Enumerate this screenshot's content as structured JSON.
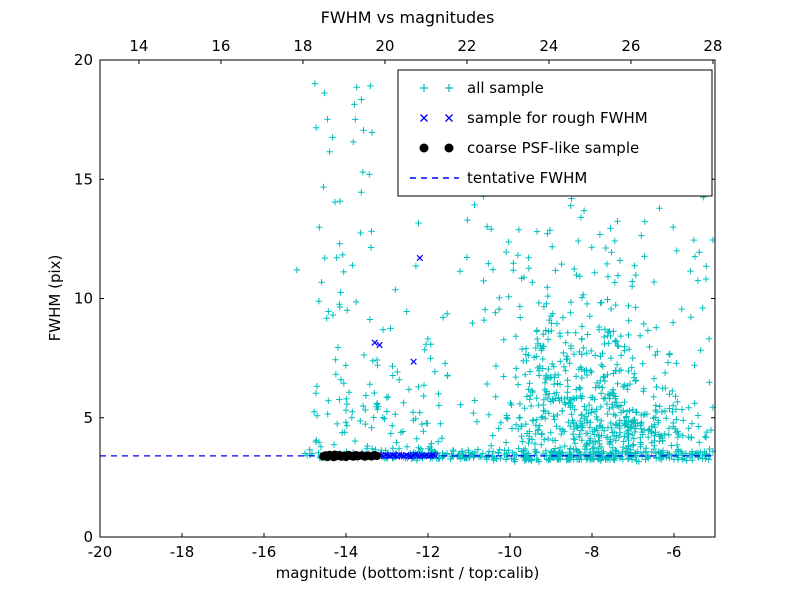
{
  "page": {
    "title": "FWHM vs magnitudes"
  },
  "chart_data": {
    "type": "scatter",
    "title": "FWHM vs magnitudes",
    "xlabel": "magnitude (bottom:isnt / top:calib)",
    "ylabel": "FWHM (pix)",
    "xlim": [
      -20,
      -5
    ],
    "ylim": [
      0,
      20
    ],
    "bottom_ticks": [
      -20,
      -18,
      -16,
      -14,
      -12,
      -10,
      -8,
      -6
    ],
    "top_ticks": [
      14,
      16,
      18,
      20,
      22,
      24,
      26,
      28
    ],
    "top_axis_range": [
      13.05,
      28.05
    ],
    "y_ticks": [
      0,
      5,
      10,
      15,
      20
    ],
    "grid": false,
    "legend_position": "upper right",
    "tentative_fwhm_y": 3.4,
    "colors": {
      "all_sample": "#00bfbf",
      "rough_fwhm": "#0000ff",
      "psf_sample": "#000000",
      "tentative_line": "#0000ff",
      "axes": "#000000",
      "background": "#ffffff"
    },
    "series": [
      {
        "name": "all sample",
        "marker": "plus",
        "color": "#00bfbf",
        "seed": 42,
        "clusters": [
          {
            "n": 420,
            "x": [
              "gauss",
              -8.3,
              1.2
            ],
            "y": [
              "gauss",
              5.3,
              1.5
            ],
            "clip": [
              -12.4,
              -5.05,
              3.25,
              19.5
            ]
          },
          {
            "n": 160,
            "x": [
              "gauss",
              -8.5,
              1.5
            ],
            "y": [
              "gauss",
              8.8,
              2.2
            ],
            "clip": [
              -12.6,
              -5.05,
              3.3,
              15.6
            ]
          },
          {
            "n": 150,
            "x": [
              "gauss",
              -7.0,
              1.0
            ],
            "y": [
              "gauss",
              4.2,
              0.7
            ],
            "clip": [
              -12.0,
              -5.05,
              3.3,
              19.5
            ]
          },
          {
            "n": 45,
            "x": [
              "uniform",
              -11.3,
              -5.2
            ],
            "y": [
              "uniform",
              11.0,
              15.5
            ],
            "clip": [
              -20,
              -5.05,
              0,
              20
            ]
          },
          {
            "n": 18,
            "x": [
              "uniform",
              -10.6,
              -5.3
            ],
            "y": [
              "uniform",
              15.5,
              19.3
            ],
            "clip": [
              -20,
              -5.05,
              0,
              20
            ]
          },
          {
            "n": 250,
            "x": [
              "uniform",
              -12.5,
              -5.1
            ],
            "y": [
              "gauss",
              3.45,
              0.12
            ],
            "clip": [
              -20,
              -5.05,
              3.1,
              3.9
            ]
          },
          {
            "n": 70,
            "x": [
              "uniform",
              -13.25,
              -11.5
            ],
            "y": [
              "gauss",
              5.0,
              2.3
            ],
            "clip": [
              -20,
              -5.05,
              3.3,
              14.0
            ]
          },
          {
            "n": 55,
            "x": [
              "uniform",
              -14.8,
              -13.2
            ],
            "y": [
              "gauss",
              4.7,
              1.1
            ],
            "clip": [
              -20,
              -5.05,
              3.3,
              8.0
            ]
          },
          {
            "n": 45,
            "x": [
              "uniform",
              -14.8,
              -13.35
            ],
            "y": [
              "uniform",
              6.0,
              19.2
            ],
            "clip": [
              -20,
              -5.05,
              0,
              20
            ]
          },
          {
            "n": 40,
            "x": [
              "uniform",
              -14.9,
              -12.5
            ],
            "y": [
              "gauss",
              3.45,
              0.1
            ],
            "clip": [
              -20,
              -5.05,
              3.2,
              3.8
            ]
          }
        ],
        "extra_points": [
          [
            -15.2,
            11.2
          ],
          [
            -15.0,
            3.5
          ],
          [
            -14.95,
            3.42
          ],
          [
            -5.6,
            11.15
          ],
          [
            -5.3,
            9.6
          ],
          [
            -5.2,
            4.4
          ],
          [
            -6.9,
            16.1
          ],
          [
            -7.6,
            17.5
          ],
          [
            -9.3,
            18.9
          ],
          [
            -5.5,
            7.2
          ]
        ]
      },
      {
        "name": "sample for rough FWHM",
        "marker": "x",
        "color": "#0000ff",
        "points": [
          [
            -14.0,
            3.42
          ],
          [
            -13.95,
            3.38
          ],
          [
            -13.9,
            3.45
          ],
          [
            -13.85,
            3.4
          ],
          [
            -13.8,
            3.36
          ],
          [
            -13.74,
            3.44
          ],
          [
            -13.69,
            3.41
          ],
          [
            -13.63,
            3.38
          ],
          [
            -13.58,
            3.46
          ],
          [
            -13.52,
            3.42
          ],
          [
            -13.47,
            3.39
          ],
          [
            -13.41,
            3.43
          ],
          [
            -13.36,
            3.37
          ],
          [
            -13.3,
            3.44
          ],
          [
            -13.25,
            3.4
          ],
          [
            -13.19,
            3.46
          ],
          [
            -13.14,
            3.42
          ],
          [
            -13.08,
            3.38
          ],
          [
            -13.03,
            3.45
          ],
          [
            -12.97,
            3.41
          ],
          [
            -12.92,
            3.39
          ],
          [
            -12.86,
            3.44
          ],
          [
            -12.81,
            3.41
          ],
          [
            -12.75,
            3.37
          ],
          [
            -12.7,
            3.45
          ],
          [
            -12.64,
            3.42
          ],
          [
            -12.59,
            3.39
          ],
          [
            -12.53,
            3.44
          ],
          [
            -12.48,
            3.4
          ],
          [
            -12.42,
            3.37
          ],
          [
            -12.37,
            3.43
          ],
          [
            -12.31,
            3.46
          ],
          [
            -12.26,
            3.41
          ],
          [
            -12.2,
            3.38
          ],
          [
            -12.15,
            3.44
          ],
          [
            -12.09,
            3.4
          ],
          [
            -12.04,
            3.43
          ],
          [
            -11.98,
            3.39
          ],
          [
            -11.93,
            3.42
          ],
          [
            -11.87,
            3.45
          ],
          [
            -11.82,
            3.4
          ],
          [
            -12.2,
            11.7
          ],
          [
            -13.3,
            8.15
          ],
          [
            -13.18,
            8.05
          ],
          [
            -12.35,
            7.35
          ]
        ]
      },
      {
        "name": "coarse PSF-like sample",
        "marker": "dot",
        "color": "#000000",
        "points": [
          [
            -14.55,
            3.38
          ],
          [
            -14.5,
            3.42
          ],
          [
            -14.45,
            3.36
          ],
          [
            -14.4,
            3.44
          ],
          [
            -14.35,
            3.4
          ],
          [
            -14.3,
            3.35
          ],
          [
            -14.27,
            3.45
          ],
          [
            -14.22,
            3.39
          ],
          [
            -14.16,
            3.43
          ],
          [
            -14.1,
            3.37
          ],
          [
            -14.05,
            3.41
          ],
          [
            -14.0,
            3.36
          ],
          [
            -13.94,
            3.44
          ],
          [
            -13.88,
            3.4
          ],
          [
            -13.82,
            3.37
          ],
          [
            -13.76,
            3.43
          ],
          [
            -13.7,
            3.39
          ],
          [
            -13.62,
            3.42
          ],
          [
            -13.54,
            3.37
          ],
          [
            -13.46,
            3.41
          ],
          [
            -13.38,
            3.38
          ],
          [
            -13.31,
            3.43
          ],
          [
            -13.25,
            3.4
          ]
        ]
      },
      {
        "name": "tentative FWHM",
        "marker": "dashed-line",
        "color": "#0000ff",
        "y": 3.4
      }
    ],
    "legend": [
      {
        "label": "all sample",
        "marker": "plus",
        "color": "#00bfbf"
      },
      {
        "label": "sample for rough FWHM",
        "marker": "x",
        "color": "#0000ff"
      },
      {
        "label": "coarse PSF-like sample",
        "marker": "dot",
        "color": "#000000"
      },
      {
        "label": "tentative FWHM",
        "marker": "dashed-line",
        "color": "#0000ff"
      }
    ]
  }
}
